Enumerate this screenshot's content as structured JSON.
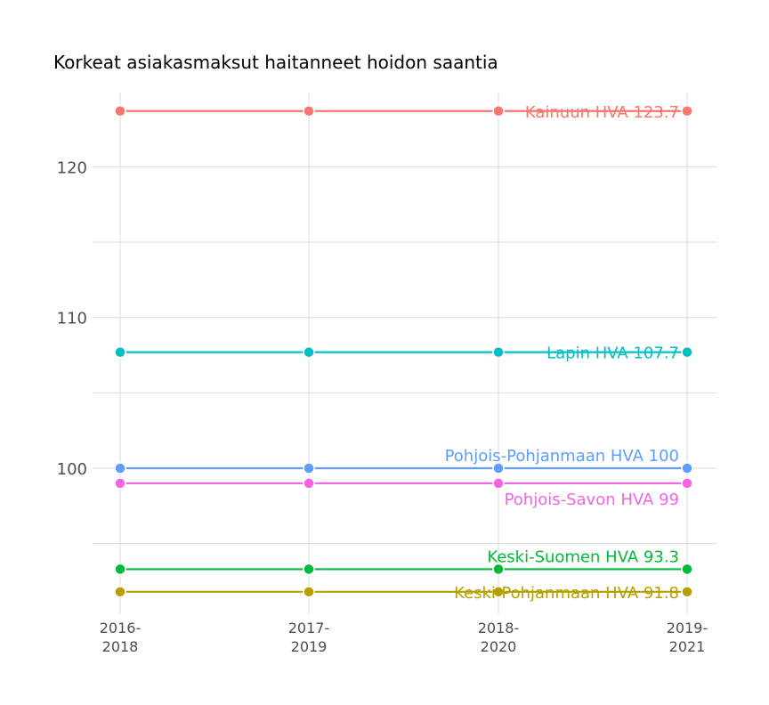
{
  "chart_data": {
    "type": "line",
    "title": "Korkeat asiakasmaksut haitanneet hoidon saantia",
    "xlabel": "",
    "ylabel": "",
    "categories": [
      [
        "2016-",
        "2018"
      ],
      [
        "2017-",
        "2019"
      ],
      [
        "2018-",
        "2020"
      ],
      [
        "2019-",
        "2021"
      ]
    ],
    "yticks": [
      100,
      110,
      120
    ],
    "ylim": [
      90.5,
      125
    ],
    "grid": true,
    "legend": "none",
    "series": [
      {
        "name": "Kainuun HVA",
        "label": "Kainuun HVA 123.7",
        "color": "#F8766D",
        "values": [
          123.7,
          123.7,
          123.7,
          123.7
        ],
        "label_position": "on"
      },
      {
        "name": "Lapin HVA",
        "label": "Lapin HVA 107.7",
        "color": "#00BFC4",
        "values": [
          107.7,
          107.7,
          107.7,
          107.7
        ],
        "label_position": "on"
      },
      {
        "name": "Pohjois-Pohjanmaan HVA",
        "label": "Pohjois-Pohjanmaan HVA 100",
        "color": "#619CFF",
        "values": [
          100,
          100,
          100,
          100
        ],
        "label_position": "above"
      },
      {
        "name": "Pohjois-Savon HVA",
        "label": "Pohjois-Savon HVA 99",
        "color": "#F564E3",
        "values": [
          99,
          99,
          99,
          99
        ],
        "label_position": "below"
      },
      {
        "name": "Keski-Suomen HVA",
        "label": "Keski-Suomen HVA 93.3",
        "color": "#00BA38",
        "values": [
          93.3,
          93.3,
          93.3,
          93.3
        ],
        "label_position": "above"
      },
      {
        "name": "Keski-Pohjanmaan HVA",
        "label": "Keski-Pohjanmaan HVA 91.8",
        "color": "#B79F00",
        "values": [
          91.8,
          91.8,
          91.8,
          91.8
        ],
        "label_position": "on"
      }
    ]
  }
}
